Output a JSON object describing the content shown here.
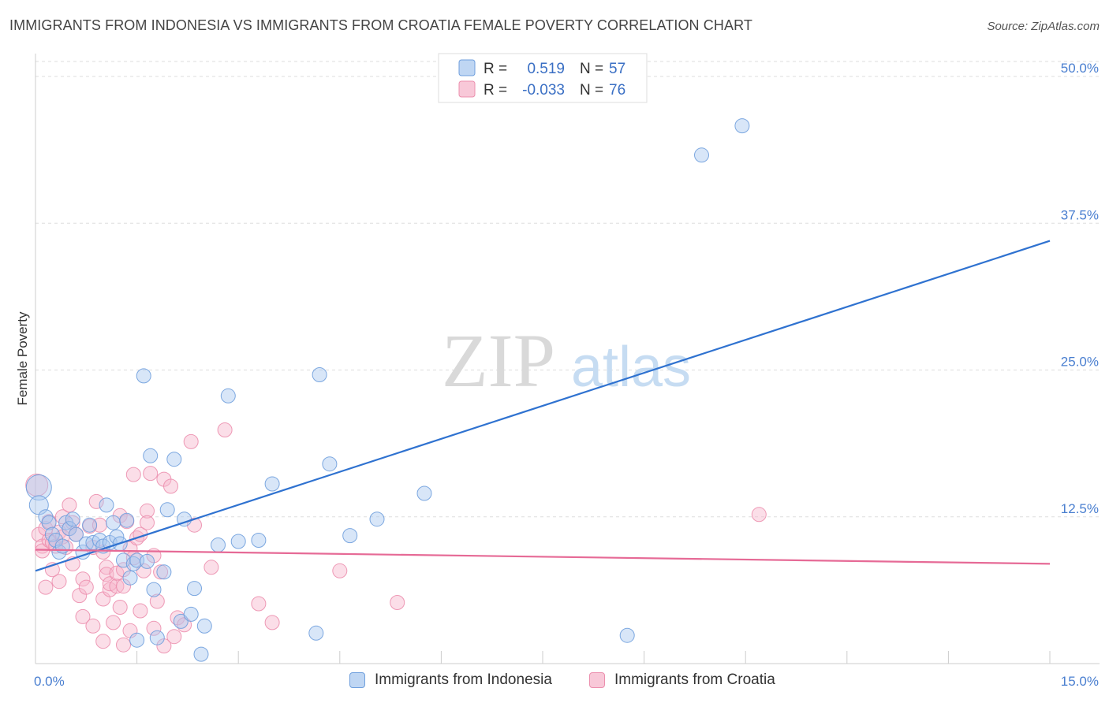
{
  "header": {
    "title": "IMMIGRANTS FROM INDONESIA VS IMMIGRANTS FROM CROATIA FEMALE POVERTY CORRELATION CHART",
    "source": "Source: ZipAtlas.com"
  },
  "watermark": {
    "zip": "ZIP",
    "atlas": "atlas"
  },
  "colors": {
    "blue_fill": "#a9c8ef",
    "blue_stroke": "#6f9fdd",
    "blue_line": "#2f72d0",
    "pink_fill": "#f6b6cb",
    "pink_stroke": "#ec8fae",
    "pink_line": "#e66a96",
    "tick_text": "#4a7fd0",
    "grid": "#dddddd",
    "axis": "#cccccc"
  },
  "legend_top": {
    "rows": [
      {
        "r_label": "R =",
        "r_value": "0.519",
        "n_label": "N =",
        "n_value": "57"
      },
      {
        "r_label": "R =",
        "r_value": "-0.033",
        "n_label": "N =",
        "n_value": "76"
      }
    ]
  },
  "legend_bottom": {
    "items": [
      {
        "label": "Immigrants from Indonesia"
      },
      {
        "label": "Immigrants from Croatia"
      }
    ]
  },
  "chart_data": {
    "type": "scatter",
    "title": "IMMIGRANTS FROM INDONESIA VS IMMIGRANTS FROM CROATIA FEMALE POVERTY CORRELATION CHART",
    "xlabel": "",
    "ylabel": "Female Poverty",
    "xlim": [
      0,
      15
    ],
    "ylim": [
      0,
      50
    ],
    "x_tick_labels": [
      {
        "value": 0,
        "label": "0.0%"
      },
      {
        "value": 15,
        "label": "15.0%"
      }
    ],
    "x_minor_ticks": [
      1.5,
      3.0,
      4.5,
      6.0,
      7.5,
      9.0,
      10.5,
      12.0,
      13.5,
      15.0
    ],
    "y_ticks": [
      {
        "value": 12.5,
        "label": "12.5%"
      },
      {
        "value": 25.0,
        "label": "25.0%"
      },
      {
        "value": 37.5,
        "label": "37.5%"
      },
      {
        "value": 50.0,
        "label": "50.0%"
      }
    ],
    "grid": true,
    "series": [
      {
        "name": "Immigrants from Indonesia",
        "r": 0.519,
        "n": 57,
        "trend": {
          "x0": 0,
          "y0": 7.9,
          "x1": 15,
          "y1": 36.0
        },
        "points": [
          [
            0.05,
            15.0,
            16
          ],
          [
            0.05,
            13.5,
            12
          ],
          [
            0.15,
            12.5,
            9
          ],
          [
            0.2,
            12.0,
            9
          ],
          [
            0.25,
            11.0,
            9
          ],
          [
            0.3,
            10.5,
            9
          ],
          [
            0.35,
            9.5,
            9
          ],
          [
            0.4,
            10.0,
            9
          ],
          [
            0.45,
            12.0,
            9
          ],
          [
            0.5,
            11.5,
            9
          ],
          [
            0.55,
            12.3,
            9
          ],
          [
            0.6,
            11.0,
            9
          ],
          [
            0.7,
            9.5,
            9
          ],
          [
            0.75,
            10.2,
            9
          ],
          [
            0.8,
            11.8,
            9
          ],
          [
            0.85,
            10.3,
            9
          ],
          [
            0.95,
            10.5,
            9
          ],
          [
            1.0,
            10.0,
            9
          ],
          [
            1.05,
            13.5,
            9
          ],
          [
            1.1,
            10.3,
            9
          ],
          [
            1.15,
            12.0,
            9
          ],
          [
            1.2,
            10.8,
            9
          ],
          [
            1.25,
            10.2,
            9
          ],
          [
            1.3,
            8.8,
            9
          ],
          [
            1.35,
            12.2,
            9
          ],
          [
            1.4,
            7.3,
            9
          ],
          [
            1.45,
            8.5,
            9
          ],
          [
            1.5,
            8.8,
            9
          ],
          [
            1.5,
            2.0,
            9
          ],
          [
            1.6,
            24.5,
            9
          ],
          [
            1.65,
            8.7,
            9
          ],
          [
            1.7,
            17.7,
            9
          ],
          [
            1.75,
            6.3,
            9
          ],
          [
            1.8,
            2.2,
            9
          ],
          [
            1.9,
            7.8,
            9
          ],
          [
            1.95,
            13.1,
            9
          ],
          [
            2.05,
            17.4,
            9
          ],
          [
            2.15,
            3.6,
            9
          ],
          [
            2.2,
            12.3,
            9
          ],
          [
            2.3,
            4.2,
            9
          ],
          [
            2.35,
            6.4,
            9
          ],
          [
            2.45,
            0.8,
            9
          ],
          [
            2.5,
            3.2,
            9
          ],
          [
            2.7,
            10.1,
            9
          ],
          [
            2.85,
            22.8,
            9
          ],
          [
            3.0,
            10.4,
            9
          ],
          [
            3.3,
            10.5,
            9
          ],
          [
            3.5,
            15.3,
            9
          ],
          [
            4.15,
            2.6,
            9
          ],
          [
            4.2,
            24.6,
            9
          ],
          [
            4.35,
            17.0,
            9
          ],
          [
            4.65,
            10.9,
            9
          ],
          [
            5.05,
            12.3,
            9
          ],
          [
            5.75,
            14.5,
            9
          ],
          [
            8.75,
            2.4,
            9
          ],
          [
            9.85,
            43.3,
            9
          ],
          [
            10.45,
            45.8,
            9
          ]
        ]
      },
      {
        "name": "Immigrants from Croatia",
        "r": -0.033,
        "n": 76,
        "trend": {
          "x0": 0,
          "y0": 9.7,
          "x1": 15,
          "y1": 8.5
        },
        "points": [
          [
            0.02,
            15.2,
            14
          ],
          [
            0.05,
            11.0,
            9
          ],
          [
            0.1,
            10.0,
            9
          ],
          [
            0.1,
            9.6,
            9
          ],
          [
            0.15,
            11.5,
            9
          ],
          [
            0.2,
            12.1,
            9
          ],
          [
            0.2,
            10.5,
            9
          ],
          [
            0.25,
            10.3,
            9
          ],
          [
            0.3,
            10.0,
            9
          ],
          [
            0.35,
            11.2,
            9
          ],
          [
            0.4,
            12.5,
            9
          ],
          [
            0.4,
            10.8,
            9
          ],
          [
            0.45,
            9.9,
            9
          ],
          [
            0.5,
            11.5,
            9
          ],
          [
            0.5,
            13.5,
            9
          ],
          [
            0.55,
            12.0,
            9
          ],
          [
            0.6,
            11.0,
            9
          ],
          [
            0.65,
            5.8,
            9
          ],
          [
            0.7,
            7.2,
            9
          ],
          [
            0.75,
            6.5,
            9
          ],
          [
            0.8,
            11.7,
            9
          ],
          [
            0.85,
            9.9,
            9
          ],
          [
            0.9,
            13.8,
            9
          ],
          [
            0.95,
            11.8,
            9
          ],
          [
            1.0,
            5.5,
            9
          ],
          [
            1.0,
            9.5,
            9
          ],
          [
            1.05,
            8.2,
            9
          ],
          [
            1.05,
            7.6,
            9
          ],
          [
            1.1,
            6.3,
            9
          ],
          [
            1.1,
            6.8,
            9
          ],
          [
            1.15,
            3.5,
            9
          ],
          [
            1.2,
            6.6,
            9
          ],
          [
            1.2,
            7.7,
            9
          ],
          [
            1.25,
            12.6,
            9
          ],
          [
            1.3,
            6.6,
            9
          ],
          [
            1.3,
            8.0,
            9
          ],
          [
            1.35,
            12.1,
            9
          ],
          [
            1.4,
            9.8,
            9
          ],
          [
            1.4,
            2.8,
            9
          ],
          [
            1.45,
            16.1,
            9
          ],
          [
            1.5,
            10.7,
            9
          ],
          [
            1.55,
            11.0,
            9
          ],
          [
            1.6,
            7.9,
            9
          ],
          [
            1.65,
            13.0,
            9
          ],
          [
            1.65,
            12.0,
            9
          ],
          [
            1.7,
            16.2,
            9
          ],
          [
            1.75,
            3.0,
            9
          ],
          [
            1.8,
            5.3,
            9
          ],
          [
            1.85,
            7.8,
            9
          ],
          [
            1.9,
            15.7,
            9
          ],
          [
            1.9,
            1.5,
            9
          ],
          [
            2.0,
            15.1,
            9
          ],
          [
            2.1,
            3.9,
            9
          ],
          [
            2.2,
            3.3,
            9
          ],
          [
            2.3,
            18.9,
            9
          ],
          [
            2.35,
            11.8,
            9
          ],
          [
            2.6,
            8.2,
            9
          ],
          [
            2.8,
            19.9,
            9
          ],
          [
            3.3,
            5.1,
            9
          ],
          [
            3.5,
            3.5,
            9
          ],
          [
            4.5,
            7.9,
            9
          ],
          [
            5.35,
            5.2,
            9
          ],
          [
            10.7,
            12.7,
            9
          ],
          [
            1.0,
            1.9,
            9
          ],
          [
            1.3,
            1.6,
            9
          ],
          [
            0.7,
            4.0,
            9
          ],
          [
            0.55,
            8.5,
            9
          ],
          [
            0.35,
            7.0,
            9
          ],
          [
            0.25,
            8.0,
            9
          ],
          [
            0.15,
            6.5,
            9
          ],
          [
            1.55,
            4.5,
            9
          ],
          [
            1.75,
            9.2,
            9
          ],
          [
            2.05,
            2.3,
            9
          ],
          [
            1.45,
            9.0,
            9
          ],
          [
            0.85,
            3.2,
            9
          ],
          [
            1.25,
            4.8,
            9
          ]
        ]
      }
    ]
  }
}
